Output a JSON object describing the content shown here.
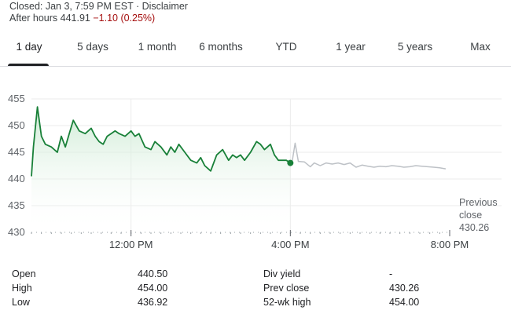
{
  "header": {
    "closed_text": "Closed: Jan 3, 7:59 PM EST · Disclaimer",
    "after_hours_label": "After hours 441.91",
    "after_hours_change": "−1.10 (0.25%)"
  },
  "tabs": [
    {
      "label": "1 day",
      "active": true
    },
    {
      "label": "5 days",
      "active": false
    },
    {
      "label": "1 month",
      "active": false
    },
    {
      "label": "6 months",
      "active": false
    },
    {
      "label": "YTD",
      "active": false
    },
    {
      "label": "1 year",
      "active": false
    },
    {
      "label": "5 years",
      "active": false
    },
    {
      "label": "Max",
      "active": false
    }
  ],
  "colors": {
    "line": "#188038",
    "fill_top": "#c7e8cf",
    "after_hours_line": "#bdc1c6",
    "grid": "#ebebeb",
    "negative": "#a50e0e"
  },
  "chart_data": {
    "type": "line",
    "y_ticks": [
      430,
      435,
      440,
      445,
      450,
      455
    ],
    "ylim": [
      430,
      455
    ],
    "x_ticks": [
      "12:00 PM",
      "4:00 PM",
      "8:00 PM"
    ],
    "x_tick_hours": [
      12,
      16,
      20
    ],
    "xlim_hours": [
      9.5,
      20.0
    ],
    "grid": true,
    "series": [
      {
        "session": "regular",
        "x": [
          9.5,
          9.55,
          9.65,
          9.75,
          9.85,
          10.0,
          10.15,
          10.25,
          10.35,
          10.45,
          10.55,
          10.7,
          10.85,
          11.0,
          11.1,
          11.2,
          11.3,
          11.4,
          11.5,
          11.6,
          11.7,
          11.85,
          12.0,
          12.1,
          12.2,
          12.35,
          12.5,
          12.6,
          12.75,
          12.9,
          13.0,
          13.1,
          13.2,
          13.35,
          13.5,
          13.65,
          13.75,
          13.85,
          14.0,
          14.15,
          14.3,
          14.45,
          14.55,
          14.65,
          14.75,
          14.85,
          15.0,
          15.15,
          15.25,
          15.35,
          15.5,
          15.6,
          15.7,
          15.8,
          15.9,
          16.0
        ],
        "y": [
          440.5,
          446.0,
          453.5,
          448.0,
          446.5,
          446.0,
          445.0,
          448.0,
          446.0,
          448.5,
          451.0,
          449.0,
          448.5,
          449.5,
          448.0,
          447.0,
          446.5,
          448.0,
          448.5,
          449.0,
          448.5,
          448.0,
          449.0,
          448.0,
          448.5,
          446.0,
          445.5,
          447.0,
          446.0,
          444.5,
          446.0,
          445.0,
          446.5,
          445.0,
          443.5,
          443.0,
          444.0,
          442.5,
          441.5,
          444.5,
          445.5,
          443.5,
          444.5,
          444.0,
          444.5,
          443.5,
          445.0,
          447.0,
          446.5,
          445.5,
          446.5,
          444.5,
          443.5,
          443.5,
          443.5,
          443.0
        ]
      },
      {
        "session": "after_hours",
        "x": [
          16.0,
          16.05,
          16.12,
          16.2,
          16.35,
          16.5,
          16.6,
          16.75,
          16.9,
          17.05,
          17.2,
          17.35,
          17.5,
          17.65,
          17.8,
          17.95,
          18.1,
          18.25,
          18.4,
          18.55,
          18.7,
          18.85,
          19.0,
          19.15,
          19.3,
          19.45,
          19.6,
          19.75,
          19.9
        ],
        "y": [
          443.0,
          443.5,
          446.7,
          443.3,
          443.2,
          442.3,
          443.0,
          442.5,
          443.0,
          442.8,
          443.0,
          442.7,
          443.0,
          442.2,
          442.6,
          442.4,
          442.2,
          442.4,
          442.3,
          442.5,
          442.4,
          442.2,
          442.3,
          442.5,
          442.4,
          442.3,
          442.2,
          442.1,
          441.9
        ]
      }
    ],
    "annotation": [
      "Previous",
      "close",
      "430.26"
    ]
  },
  "stats": [
    {
      "label1": "Open",
      "value1": "440.50",
      "label2": "Div yield",
      "value2": "-"
    },
    {
      "label1": "High",
      "value1": "454.00",
      "label2": "Prev close",
      "value2": "430.26"
    },
    {
      "label1": "Low",
      "value1": "436.92",
      "label2": "52-wk high",
      "value2": "454.00"
    }
  ]
}
